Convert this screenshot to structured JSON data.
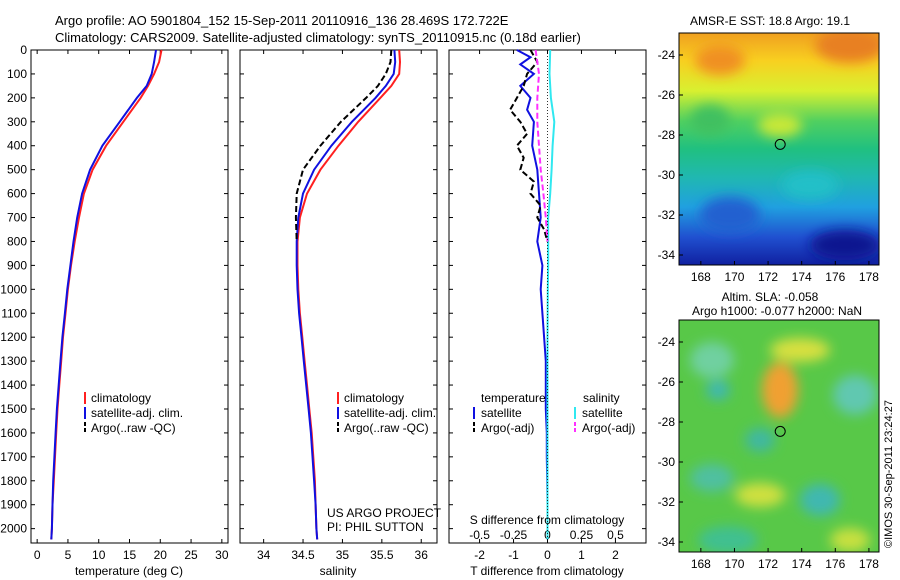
{
  "header": {
    "line1": "Argo profile: AO 5901804_152 15-Sep-2011 20110916_136 28.469S 172.722E",
    "line2": "Climatology: CARS2009. Satellite-adjusted climatology: synTS_20110915.nc (0.18d earlier)"
  },
  "side_label": "©IMOS 30-Sep-2011 23:24:27",
  "project": {
    "line1": "US ARGO PROJECT",
    "line2": "PI: PHIL SUTTON"
  },
  "colors": {
    "red": "#ff2020",
    "blue": "#1010e0",
    "black": "#000000",
    "cyan": "#30e8f0",
    "magenta": "#ff30ff"
  },
  "depth_ticks": [
    "0",
    "100",
    "200",
    "300",
    "400",
    "500",
    "600",
    "700",
    "800",
    "900",
    "1000",
    "1100",
    "1200",
    "1300",
    "1400",
    "1500",
    "1600",
    "1700",
    "1800",
    "1900",
    "2000"
  ],
  "chart_data": [
    {
      "type": "line",
      "xlabel": "temperature (deg C)",
      "ylim": [
        2060,
        0
      ],
      "xlim": [
        -1,
        31
      ],
      "xticks": [
        "0",
        "5",
        "10",
        "15",
        "20",
        "25",
        "30"
      ],
      "legend": [
        "climatology",
        "satellite-adj. clim.",
        "Argo(..raw -QC)"
      ],
      "series": [
        {
          "name": "climatology",
          "color": "red",
          "depth": [
            0,
            50,
            100,
            150,
            200,
            300,
            400,
            500,
            600,
            700,
            800,
            900,
            1000,
            1100,
            1200,
            1300,
            1400,
            1500,
            1600,
            1700,
            1800,
            1900,
            2000,
            2045
          ],
          "values": [
            20.2,
            19.8,
            19.0,
            18.0,
            16.8,
            14.0,
            11.2,
            9.0,
            7.6,
            6.8,
            6.1,
            5.5,
            5.0,
            4.6,
            4.2,
            3.9,
            3.6,
            3.3,
            3.1,
            2.9,
            2.7,
            2.5,
            2.4,
            2.3
          ]
        },
        {
          "name": "satellite-adj. clim.",
          "color": "blue",
          "depth": [
            0,
            50,
            100,
            150,
            200,
            300,
            400,
            500,
            600,
            700,
            800,
            900,
            1000,
            1100,
            1200,
            1300,
            1400,
            1500,
            1600,
            1700,
            1800,
            1900,
            2000,
            2045
          ],
          "values": [
            19.3,
            19.0,
            18.6,
            17.8,
            16.2,
            13.4,
            10.6,
            8.6,
            7.3,
            6.5,
            5.9,
            5.4,
            4.9,
            4.5,
            4.1,
            3.8,
            3.5,
            3.2,
            3.0,
            2.8,
            2.6,
            2.5,
            2.4,
            2.3
          ]
        }
      ]
    },
    {
      "type": "line",
      "xlabel": "salinity",
      "ylim": [
        2060,
        0
      ],
      "xlim": [
        33.7,
        36.2
      ],
      "xticks": [
        "34",
        "34.5",
        "35",
        "35.5",
        "36"
      ],
      "legend": [
        "climatology",
        "satellite-adj. clim.",
        "Argo(..raw -QC)"
      ],
      "series": [
        {
          "name": "climatology",
          "color": "red",
          "depth": [
            0,
            50,
            100,
            150,
            200,
            300,
            400,
            500,
            600,
            700,
            800,
            900,
            1000,
            1100,
            1200,
            1300,
            1400,
            1500,
            1600,
            1700,
            1800,
            1900,
            2000,
            2045
          ],
          "values": [
            35.72,
            35.73,
            35.72,
            35.62,
            35.48,
            35.2,
            34.95,
            34.72,
            34.55,
            34.46,
            34.43,
            34.43,
            34.44,
            34.46,
            34.49,
            34.52,
            34.55,
            34.58,
            34.61,
            34.63,
            34.65,
            34.66,
            34.67,
            34.68
          ]
        },
        {
          "name": "satellite-adj. clim.",
          "color": "blue",
          "depth": [
            0,
            50,
            100,
            150,
            200,
            300,
            400,
            500,
            600,
            700,
            800,
            900,
            1000,
            1100,
            1200,
            1300,
            1400,
            1500,
            1600,
            1700,
            1800,
            1900,
            2000,
            2045
          ],
          "values": [
            35.66,
            35.67,
            35.65,
            35.55,
            35.42,
            35.12,
            34.86,
            34.64,
            34.5,
            34.44,
            34.42,
            34.42,
            34.43,
            34.45,
            34.48,
            34.51,
            34.54,
            34.57,
            34.6,
            34.62,
            34.64,
            34.66,
            34.67,
            34.68
          ]
        },
        {
          "name": "Argo(..raw -QC)",
          "color": "black",
          "dashed": true,
          "depth": [
            0,
            50,
            100,
            150,
            200,
            300,
            400,
            500,
            600,
            700,
            800
          ],
          "values": [
            35.62,
            35.61,
            35.55,
            35.45,
            35.3,
            34.98,
            34.72,
            34.5,
            34.42,
            34.41,
            34.42
          ]
        }
      ]
    },
    {
      "type": "line",
      "xlabel": "T difference from climatology",
      "xlabel_top": "S difference from climatology",
      "ylim": [
        2060,
        0
      ],
      "xlim": [
        -2.9,
        2.9
      ],
      "xticks": [
        "-2",
        "-1",
        "0",
        "1",
        "2"
      ],
      "xticks_top": [
        "-0.5",
        "-0.25",
        "0",
        "0.25",
        "0.5"
      ],
      "legend_headers": [
        "temperature",
        "salinity"
      ],
      "legend": [
        "satellite",
        "Argo(-adj)",
        "satellite",
        "Argo(-adj)"
      ],
      "series": [
        {
          "name": "satellite",
          "color": "blue",
          "depth": [
            0,
            30,
            60,
            100,
            150,
            200,
            250,
            300,
            400,
            500,
            600,
            700,
            800,
            900,
            1000,
            1100,
            1200,
            1300,
            1400,
            1500,
            1600,
            1700,
            1800,
            1900,
            2000,
            2045
          ],
          "values": [
            -0.9,
            -0.5,
            -0.8,
            -0.4,
            -0.8,
            -0.5,
            -0.6,
            -0.4,
            -0.45,
            -0.3,
            -0.25,
            -0.2,
            -0.3,
            -0.15,
            -0.2,
            -0.15,
            -0.1,
            -0.05,
            -0.05,
            -0.05,
            -0.02,
            -0.02,
            -0.01,
            0,
            0,
            0
          ]
        },
        {
          "name": "satellite",
          "color": "cyan",
          "depth": [
            0,
            100,
            200,
            300,
            400,
            500,
            600,
            700,
            800,
            900,
            1000,
            1200,
            1400,
            1600,
            1800,
            2045
          ],
          "values": [
            0.08,
            0.06,
            0.1,
            0.2,
            0.15,
            0.12,
            0.08,
            0.02,
            0.02,
            0.02,
            0.01,
            0,
            0,
            0,
            0,
            0
          ]
        },
        {
          "name": "Argo(-adj)",
          "color": "black",
          "dashed": true,
          "depth": [
            0,
            50,
            100,
            150,
            200,
            250,
            300,
            350,
            400,
            450,
            500,
            550,
            600,
            650,
            700,
            750,
            800
          ],
          "values": [
            -0.5,
            -0.3,
            -0.6,
            -0.7,
            -0.9,
            -1.1,
            -0.8,
            -0.6,
            -0.9,
            -0.7,
            -0.8,
            -0.4,
            -0.5,
            -0.2,
            -0.3,
            -0.1,
            0
          ]
        },
        {
          "name": "Argo(-adj)",
          "color": "magenta",
          "dashed": true,
          "depth": [
            0,
            50,
            100,
            200,
            300,
            400,
            500,
            600,
            700,
            800
          ],
          "values": [
            -0.35,
            -0.3,
            -0.25,
            -0.3,
            -0.3,
            -0.25,
            -0.2,
            -0.12,
            -0.05,
            0
          ]
        }
      ]
    },
    {
      "type": "heatmap",
      "title": "AMSR-E SST: 18.8 Argo: 19.1",
      "xticks": [
        "168",
        "170",
        "172",
        "174",
        "176",
        "178"
      ],
      "yticks": [
        "-24",
        "-26",
        "-28",
        "-30",
        "-32",
        "-34"
      ],
      "xlim": [
        166.7,
        178.6
      ],
      "ylim": [
        -34.5,
        -22.9
      ],
      "marker": {
        "lon": 172.722,
        "lat": -28.469
      }
    },
    {
      "type": "heatmap",
      "title": "Altim. SLA: -0.058",
      "subtitle": "Argo h1000: -0.077 h2000: NaN",
      "xticks": [
        "168",
        "170",
        "172",
        "174",
        "176",
        "178"
      ],
      "yticks": [
        "-24",
        "-26",
        "-28",
        "-30",
        "-32",
        "-34"
      ],
      "xlim": [
        166.7,
        178.6
      ],
      "ylim": [
        -34.5,
        -22.9
      ],
      "marker": {
        "lon": 172.722,
        "lat": -28.469
      }
    }
  ]
}
